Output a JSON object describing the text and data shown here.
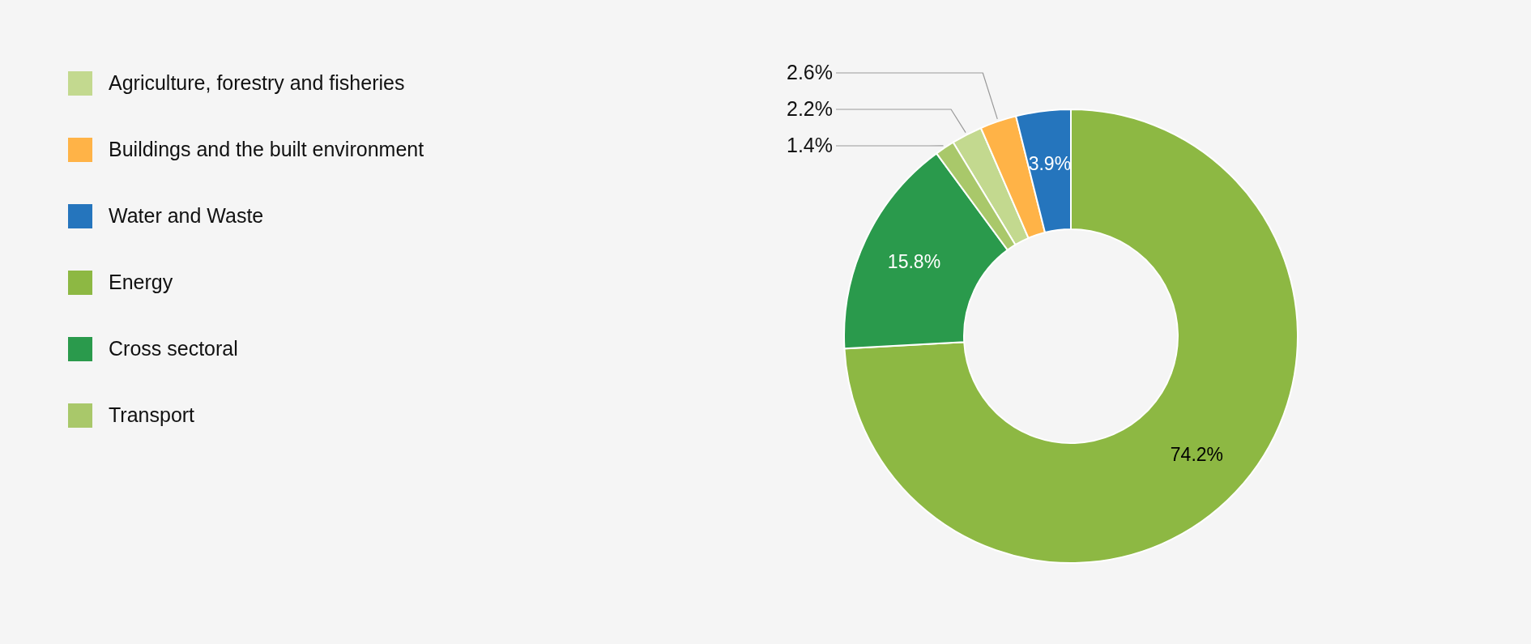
{
  "chart_data": {
    "type": "donut",
    "categories": [
      "Agriculture, forestry and fisheries",
      "Buildings and the built environment",
      "Water and Waste",
      "Energy",
      "Cross sectoral",
      "Transport"
    ],
    "values": [
      2.2,
      2.6,
      3.9,
      74.2,
      15.8,
      1.4
    ],
    "colors": [
      "#c3d98f",
      "#ffb347",
      "#2575bd",
      "#8db843",
      "#2a9a4c",
      "#a9c86a"
    ],
    "value_labels": [
      "2.2%",
      "2.6%",
      "3.9%",
      "74.2%",
      "15.8%",
      "1.4%"
    ],
    "legend": "left"
  }
}
